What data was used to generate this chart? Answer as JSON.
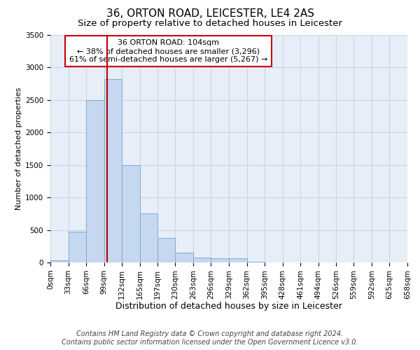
{
  "title1": "36, ORTON ROAD, LEICESTER, LE4 2AS",
  "title2": "Size of property relative to detached houses in Leicester",
  "xlabel": "Distribution of detached houses by size in Leicester",
  "ylabel": "Number of detached properties",
  "footer_line1": "Contains HM Land Registry data © Crown copyright and database right 2024.",
  "footer_line2": "Contains public sector information licensed under the Open Government Licence v3.0.",
  "annotation_line1": "36 ORTON ROAD: 104sqm",
  "annotation_line2": "← 38% of detached houses are smaller (3,296)",
  "annotation_line3": "61% of semi-detached houses are larger (5,267) →",
  "bar_left_edges": [
    0,
    33,
    66,
    99,
    132,
    165,
    197,
    230,
    263,
    296,
    329,
    362,
    395,
    428,
    461,
    494,
    526,
    559,
    592,
    625
  ],
  "bar_widths": [
    33,
    33,
    33,
    33,
    33,
    32,
    33,
    33,
    33,
    33,
    33,
    33,
    33,
    33,
    33,
    32,
    33,
    33,
    33,
    33
  ],
  "bar_heights": [
    30,
    470,
    2500,
    2820,
    1500,
    750,
    380,
    150,
    80,
    65,
    65,
    10,
    0,
    0,
    0,
    0,
    0,
    0,
    0,
    0
  ],
  "bar_color": "#c5d8f0",
  "bar_edge_color": "#7aadd4",
  "vline_x": 104,
  "vline_color": "#bb0000",
  "ylim": [
    0,
    3500
  ],
  "yticks": [
    0,
    500,
    1000,
    1500,
    2000,
    2500,
    3000,
    3500
  ],
  "xtick_labels": [
    "0sqm",
    "33sqm",
    "66sqm",
    "99sqm",
    "132sqm",
    "165sqm",
    "197sqm",
    "230sqm",
    "263sqm",
    "296sqm",
    "329sqm",
    "362sqm",
    "395sqm",
    "428sqm",
    "461sqm",
    "494sqm",
    "526sqm",
    "559sqm",
    "592sqm",
    "625sqm",
    "658sqm"
  ],
  "grid_color": "#c8d4e8",
  "bg_color": "#e8eef8",
  "annotation_box_color": "#cc0000",
  "title1_fontsize": 11,
  "title2_fontsize": 9.5,
  "xlabel_fontsize": 9,
  "ylabel_fontsize": 8,
  "tick_fontsize": 7.5,
  "annotation_fontsize": 8,
  "footer_fontsize": 7
}
